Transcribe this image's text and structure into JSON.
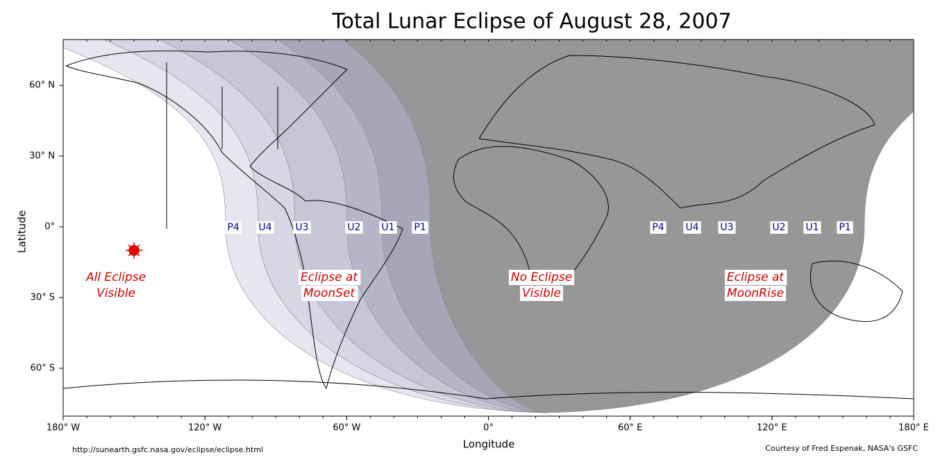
{
  "title": "Total Lunar Eclipse of August 28, 2007",
  "x_label": "Longitude",
  "y_label": "Latitude",
  "xticks": [
    {
      "value": -180,
      "label": "180° W"
    },
    {
      "value": -120,
      "label": "120° W"
    },
    {
      "value": -60,
      "label": "60° W"
    },
    {
      "value": 0,
      "label": "0°"
    },
    {
      "value": 60,
      "label": "60° E"
    },
    {
      "value": 120,
      "label": "120° E"
    },
    {
      "value": 180,
      "label": "180° E"
    }
  ],
  "yticks": [
    {
      "value": 60,
      "label": "60° N"
    },
    {
      "value": 30,
      "label": "30° N"
    },
    {
      "value": 0,
      "label": "0°"
    },
    {
      "value": -30,
      "label": "30° S"
    },
    {
      "value": -60,
      "label": "60° S"
    }
  ],
  "contacts_west": [
    "P4",
    "U4",
    "U3",
    "U2",
    "U1",
    "P1"
  ],
  "contacts_east": [
    "P4",
    "U4",
    "U3",
    "U2",
    "U1",
    "P1"
  ],
  "regions": [
    [
      "All Eclipse",
      "Visible"
    ],
    [
      "Eclipse at",
      "MoonSet"
    ],
    [
      "No Eclipse",
      "Visible"
    ],
    [
      "Eclipse at",
      "MoonRise"
    ]
  ],
  "source": "http://sunearth.gsfc.nasa.gov/eclipse/eclipse.html",
  "credit": "Courtesy of Fred Espenak, NASA's GSFC"
}
